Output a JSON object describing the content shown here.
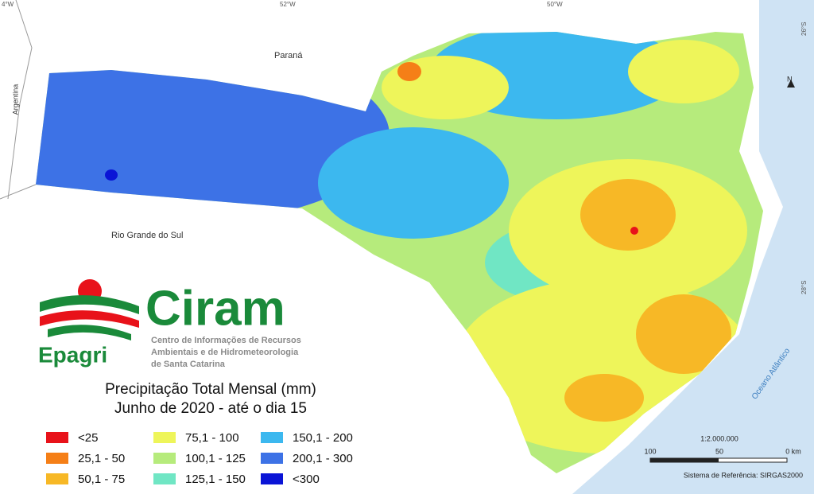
{
  "map": {
    "graticule": {
      "top": [
        "4°W",
        "52°W",
        "50°W"
      ],
      "right": [
        "26°S",
        "28°S"
      ]
    },
    "places": {
      "parana": "Paraná",
      "argentina": "Argentina",
      "rs": "Rio Grande do Sul",
      "ocean": "Oceano Atlântico"
    },
    "north": "N",
    "scale": {
      "ratio": "1:2.000.000",
      "labels": [
        "100",
        "50",
        "0 km"
      ],
      "reference": "Sistema de Referência: SIRGAS2000"
    }
  },
  "logo": {
    "name": "Ciram",
    "org": "Epagri",
    "lines": [
      "Centro de Informações de Recursos",
      "Ambientais e de Hidrometeorologia",
      "de Santa Catarina"
    ]
  },
  "title": [
    "Precipitação Total Mensal (mm)",
    "Junho de 2020 - até o dia 15"
  ],
  "legend": [
    {
      "label": "<25",
      "color": "#e8121a"
    },
    {
      "label": "25,1 - 50",
      "color": "#f57f17"
    },
    {
      "label": "50,1 - 75",
      "color": "#f7b826"
    },
    {
      "label": "75,1 - 100",
      "color": "#eef55a"
    },
    {
      "label": "100,1 - 125",
      "color": "#b6eb7c"
    },
    {
      "label": "125,1 - 150",
      "color": "#70e6c4"
    },
    {
      "label": "150,1 - 200",
      "color": "#3cb8ef"
    },
    {
      "label": "200,1 - 300",
      "color": "#3d72e6"
    },
    {
      "label": "<300",
      "color": "#0a14d6"
    }
  ]
}
